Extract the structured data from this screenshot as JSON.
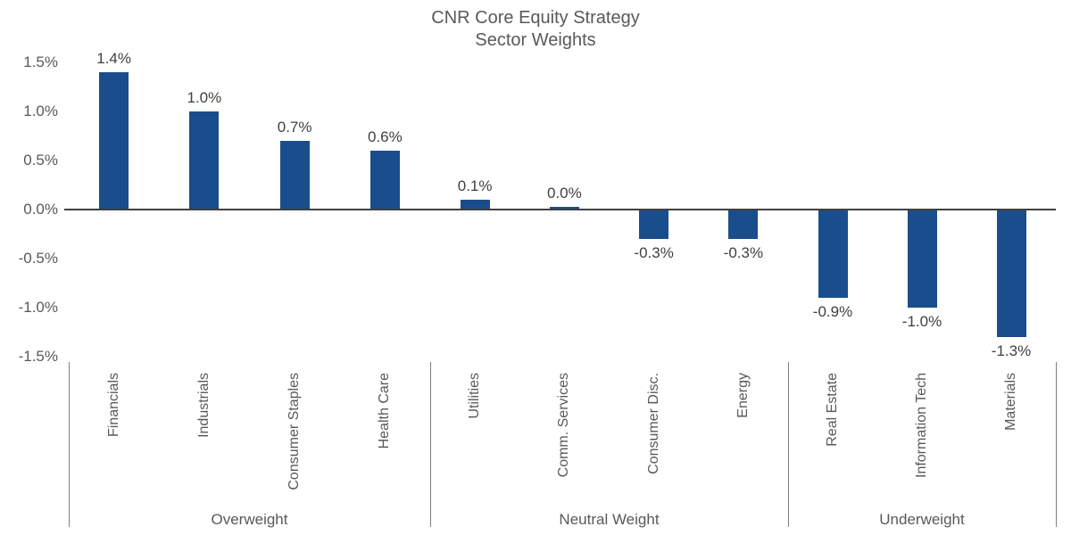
{
  "colors": {
    "bar_blue": "#1A4D8C",
    "text_gray": "#595959",
    "data_label_gray": "#404040",
    "axis_line": "#404040",
    "separator_gray": "#7F7F7F"
  },
  "chart_data": {
    "type": "bar",
    "title": "CNR Core Equity Strategy",
    "subtitle": "Sector Weights",
    "xlabel": "",
    "ylabel": "",
    "ylim": [
      -1.5,
      1.5
    ],
    "y_tick_step": 0.5,
    "y_tick_labels": [
      "1.5%",
      "1.0%",
      "0.5%",
      "0.0%",
      "-0.5%",
      "-1.0%",
      "-1.5%"
    ],
    "grid": "off",
    "legend": "none",
    "categories": [
      "Financials",
      "Industrials",
      "Consumer Staples",
      "Health Care",
      "Utilities",
      "Comm. Services",
      "Consumer Disc.",
      "Energy",
      "Real Estate",
      "Information Tech",
      "Materials"
    ],
    "values": [
      1.4,
      1.0,
      0.7,
      0.6,
      0.1,
      0.0,
      -0.3,
      -0.3,
      -0.9,
      -1.0,
      -1.3
    ],
    "groups": [
      {
        "label": "Overweight",
        "bars": [
          {
            "category": "Financials",
            "value": 1.4,
            "label": "1.4%"
          },
          {
            "category": "Industrials",
            "value": 1.0,
            "label": "1.0%"
          },
          {
            "category": "Consumer Staples",
            "value": 0.7,
            "label": "0.7%"
          },
          {
            "category": "Health Care",
            "value": 0.6,
            "label": "0.6%"
          }
        ]
      },
      {
        "label": "Neutral Weight",
        "bars": [
          {
            "category": "Utilities",
            "value": 0.1,
            "label": "0.1%"
          },
          {
            "category": "Comm. Services",
            "value": 0.0,
            "label": "0.0%"
          },
          {
            "category": "Consumer Disc.",
            "value": -0.3,
            "label": "-0.3%"
          },
          {
            "category": "Energy",
            "value": -0.3,
            "label": "-0.3%"
          }
        ]
      },
      {
        "label": "Underweight",
        "bars": [
          {
            "category": "Real Estate",
            "value": -0.9,
            "label": "-0.9%"
          },
          {
            "category": "Information Tech",
            "value": -1.0,
            "label": "-1.0%"
          },
          {
            "category": "Materials",
            "value": -1.3,
            "label": "-1.3%"
          }
        ]
      }
    ]
  }
}
